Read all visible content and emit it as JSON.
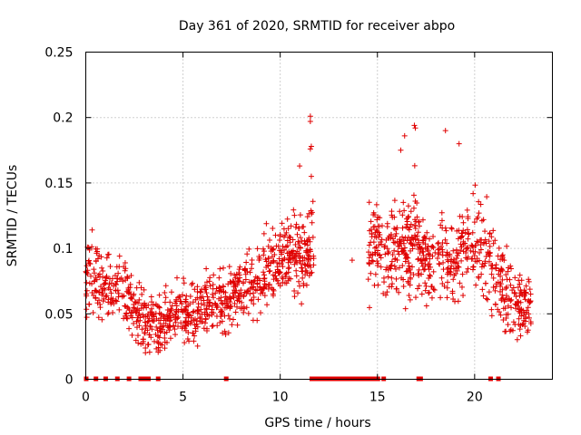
{
  "chart_data": {
    "type": "scatter",
    "title": "Day 361 of 2020, SRMTID for receiver abpo",
    "xlabel": "GPS time / hours",
    "ylabel": "SRMTID / TECUs",
    "xlim": [
      0,
      24
    ],
    "ylim": [
      0,
      0.25
    ],
    "xticks": [
      0,
      5,
      10,
      15,
      20
    ],
    "xtick_labels": [
      "0",
      "5",
      "10",
      "15",
      "20"
    ],
    "yticks": [
      0,
      0.05,
      0.1,
      0.15,
      0.2,
      0.25
    ],
    "ytick_labels": [
      "0",
      "0.05",
      "0.1",
      "0.15",
      "0.2",
      "0.25"
    ],
    "grid": true,
    "marker": "+",
    "color": "#e00000",
    "profile": {
      "hours": [
        0,
        0.3,
        0.6,
        1.0,
        1.5,
        2.0,
        2.5,
        3.0,
        3.5,
        4.0,
        4.5,
        5.0,
        5.5,
        6.0,
        6.5,
        7.0,
        7.5,
        8.0,
        8.5,
        9.0,
        9.5,
        10.0,
        10.5,
        11.0,
        11.5,
        11.7
      ],
      "mean_srmtid": [
        0.075,
        0.08,
        0.08,
        0.068,
        0.07,
        0.065,
        0.05,
        0.045,
        0.04,
        0.042,
        0.05,
        0.05,
        0.048,
        0.055,
        0.058,
        0.06,
        0.062,
        0.068,
        0.075,
        0.082,
        0.088,
        0.095,
        0.1,
        0.098,
        0.092,
        0.11
      ],
      "hours_late": [
        14.5,
        15.0,
        15.5,
        16.0,
        16.5,
        17.0,
        17.5,
        18.0,
        18.5,
        19.0,
        19.5,
        20.0,
        20.5,
        21.0,
        21.5,
        22.0,
        22.5,
        22.9
      ],
      "mean_srmtid_late": [
        0.095,
        0.1,
        0.098,
        0.092,
        0.102,
        0.11,
        0.088,
        0.095,
        0.09,
        0.092,
        0.1,
        0.105,
        0.095,
        0.085,
        0.07,
        0.058,
        0.055,
        0.055
      ]
    },
    "outliers": [
      {
        "x": 11.55,
        "y": 0.201
      },
      {
        "x": 11.55,
        "y": 0.197
      },
      {
        "x": 11.6,
        "y": 0.178
      },
      {
        "x": 11.55,
        "y": 0.176
      },
      {
        "x": 11.0,
        "y": 0.163
      },
      {
        "x": 11.6,
        "y": 0.155
      },
      {
        "x": 16.4,
        "y": 0.186
      },
      {
        "x": 16.9,
        "y": 0.194
      },
      {
        "x": 16.95,
        "y": 0.192
      },
      {
        "x": 18.5,
        "y": 0.19
      },
      {
        "x": 19.2,
        "y": 0.18
      },
      {
        "x": 16.2,
        "y": 0.175
      },
      {
        "x": 13.7,
        "y": 0.091
      }
    ],
    "zero_markers_hours": [
      0.0,
      0.5,
      1.0,
      1.6,
      2.2,
      2.8,
      3.0,
      3.2,
      3.7,
      7.2,
      11.6,
      11.8,
      12.0,
      12.2,
      12.4,
      12.6,
      12.8,
      13.0,
      13.2,
      13.4,
      13.6,
      13.8,
      14.0,
      14.2,
      14.4,
      14.6,
      14.8,
      15.0,
      15.3,
      17.1,
      17.2,
      20.8,
      21.2
    ]
  }
}
